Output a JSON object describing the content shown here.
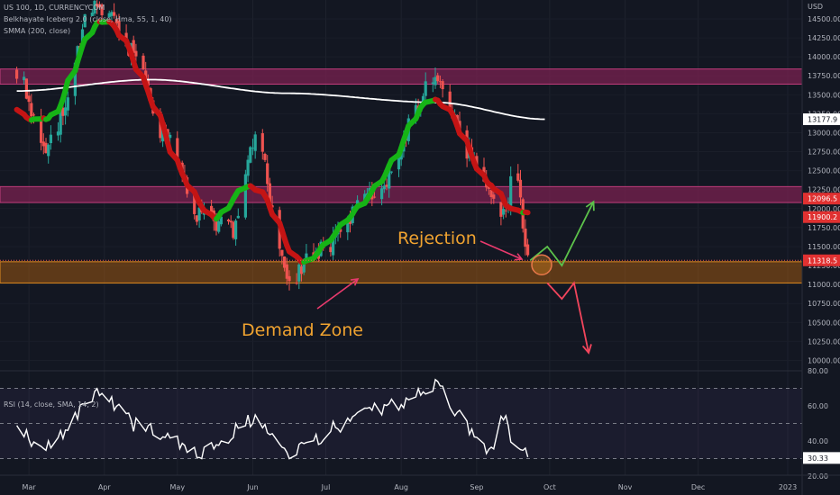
{
  "legend": {
    "symbol": "US 100, 1D, CURRENCYCOM",
    "indicator": "Belkhayate Iceberg 2.0 (close, Hma, 55, 1, 40)",
    "smma": "SMMA (200, close)",
    "rsi": "RSI (14, close, SMA, 14, 2)"
  },
  "currency": "USD",
  "annotations": {
    "rejection": "Rejection",
    "demand_zone": "Demand Zone"
  },
  "price_badges": {
    "smma": "13177.9",
    "upper_red": "12096.5",
    "lower_red": "11900.2",
    "last": "11318.5",
    "rsi_last": "30.33"
  },
  "colors": {
    "background": "#131722",
    "up_candle": "#26a69a",
    "down_candle": "#ef5350",
    "smma_line": "#ffffff",
    "iceberg_up": "#16b416",
    "iceberg_down": "#c41414",
    "resistance_zone": "#7a2150",
    "demand_zone": "#b8640d",
    "annotation_text": "#f0a330",
    "bullish_arrow": "#5cc24b",
    "bearish_arrow": "#f2455c",
    "rejection_arrow": "#e83a6d"
  },
  "chart_data": [
    {
      "type": "candlestick",
      "x_axis_ticks": [
        "Mar",
        "Apr",
        "May",
        "Jun",
        "Jul",
        "Aug",
        "Sep",
        "Oct",
        "Nov",
        "Dec",
        "2023"
      ],
      "y_axis_ticks": [
        14500,
        14250,
        14000,
        13750,
        13500,
        13250,
        13000,
        12750,
        12500,
        12250,
        12000,
        11750,
        11500,
        11250,
        11000,
        10750,
        10500,
        10250,
        10000
      ],
      "ylim": [
        9900,
        14650
      ],
      "zones": {
        "resistance_upper": [
          13640,
          13840
        ],
        "resistance_lower": [
          12080,
          12290
        ],
        "demand": [
          11020,
          11300
        ]
      },
      "price_path_keypoints": [
        {
          "date": "Feb 24",
          "close": 13800
        },
        {
          "date": "Mar 8",
          "close": 12850
        },
        {
          "date": "Mar 29",
          "close": 14700
        },
        {
          "date": "Apr 13",
          "close": 14100
        },
        {
          "date": "Apr 25",
          "close": 13000
        },
        {
          "date": "May 11",
          "close": 11900
        },
        {
          "date": "May 24",
          "close": 11700
        },
        {
          "date": "Jun 2",
          "close": 12900
        },
        {
          "date": "Jun 16",
          "close": 11100
        },
        {
          "date": "Jul 1",
          "close": 11500
        },
        {
          "date": "Jul 19",
          "close": 12150
        },
        {
          "date": "Aug 16",
          "close": 13700
        },
        {
          "date": "Aug 29",
          "close": 12700
        },
        {
          "date": "Sep 13",
          "close": 11900
        },
        {
          "date": "Sep 16",
          "close": 12550
        },
        {
          "date": "Sep 23",
          "close": 11318.5
        }
      ],
      "smma_keypoints": [
        {
          "date": "Feb 24",
          "value": 13550
        },
        {
          "date": "Apr 20",
          "value": 13700
        },
        {
          "date": "Jun 15",
          "value": 13520
        },
        {
          "date": "Aug 15",
          "value": 13400
        },
        {
          "date": "Sep 29",
          "value": 13177.9
        }
      ],
      "projection_paths": {
        "bullish": [
          {
            "date": "Sep 23",
            "value": 11318.5
          },
          {
            "date": "Sep 30",
            "value": 11500
          },
          {
            "date": "Oct 6",
            "value": 11250
          },
          {
            "date": "Oct 19",
            "value": 12090
          }
        ],
        "bearish": [
          {
            "date": "Sep 30",
            "value": 11020
          },
          {
            "date": "Oct 6",
            "value": 10810
          },
          {
            "date": "Oct 11",
            "value": 11020
          },
          {
            "date": "Oct 17",
            "value": 10100
          }
        ]
      }
    },
    {
      "type": "line",
      "title": "RSI (14, close, SMA, 14, 2)",
      "y_axis_ticks": [
        80,
        60,
        40,
        20
      ],
      "ylim": [
        16,
        81
      ],
      "bands": [
        70,
        50,
        30
      ],
      "rsi_keypoints": [
        {
          "date": "Feb 24",
          "value": 46
        },
        {
          "date": "Mar 8",
          "value": 36
        },
        {
          "date": "Mar 29",
          "value": 66
        },
        {
          "date": "Apr 19",
          "value": 46
        },
        {
          "date": "May 11",
          "value": 34
        },
        {
          "date": "Jun 2",
          "value": 52
        },
        {
          "date": "Jun 16",
          "value": 34
        },
        {
          "date": "Jul 8",
          "value": 48
        },
        {
          "date": "Jul 22",
          "value": 58
        },
        {
          "date": "Aug 16",
          "value": 71
        },
        {
          "date": "Aug 29",
          "value": 48
        },
        {
          "date": "Sep 6",
          "value": 36
        },
        {
          "date": "Sep 13",
          "value": 55
        },
        {
          "date": "Sep 16",
          "value": 40
        },
        {
          "date": "Sep 23",
          "value": 30.33
        }
      ]
    }
  ]
}
